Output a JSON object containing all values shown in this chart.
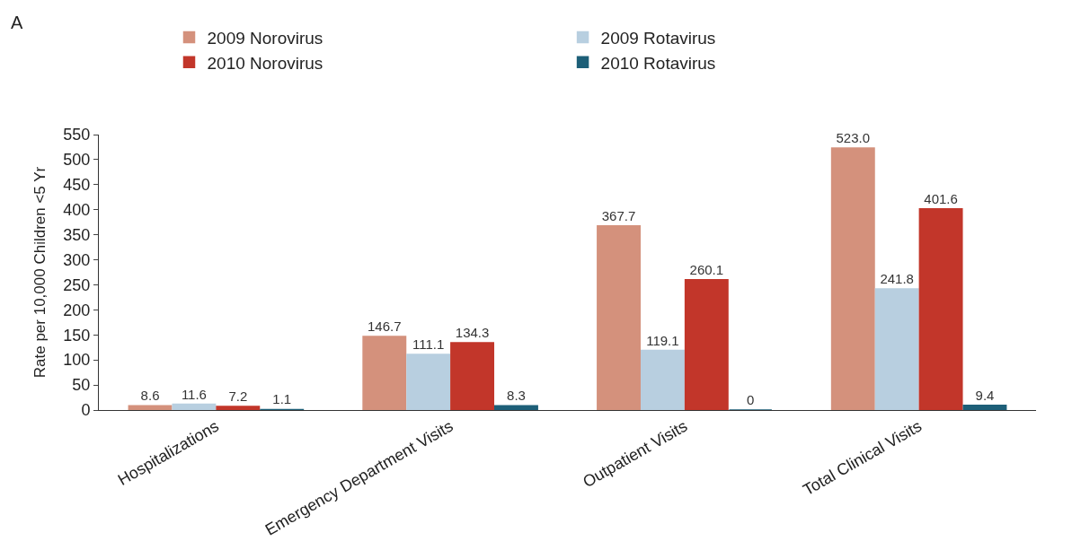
{
  "chart_data": {
    "type": "bar",
    "title": "A",
    "ylabel": "Rate per 10,000 Children <5 Yr",
    "categories": [
      "Hospitalizations",
      "Emergency Department Visits",
      "Outpatient Visits",
      "Total Clinical Visits"
    ],
    "series": [
      {
        "name": "2009 Norovirus",
        "color": "#d4917c",
        "values": [
          8.6,
          146.7,
          367.7,
          523.0
        ],
        "value_labels": [
          "8.6",
          "146.7",
          "367.7",
          "523.0"
        ]
      },
      {
        "name": "2009 Rotavirus",
        "color": "#b8cfe0",
        "values": [
          11.6,
          111.1,
          119.1,
          241.8
        ],
        "value_labels": [
          "11.6",
          "111.1",
          "119.1",
          "241.8"
        ]
      },
      {
        "name": "2010 Norovirus",
        "color": "#c2362a",
        "values": [
          7.2,
          134.3,
          260.1,
          401.6
        ],
        "value_labels": [
          "7.2",
          "134.3",
          "260.1",
          "401.6"
        ]
      },
      {
        "name": "2010 Rotavirus",
        "color": "#1d5f78",
        "values": [
          1.1,
          8.3,
          0,
          9.4
        ],
        "value_labels": [
          "1.1",
          "8.3",
          "0",
          "9.4"
        ]
      }
    ],
    "ylim": [
      0,
      550
    ],
    "yticks": [
      0,
      50,
      100,
      150,
      200,
      250,
      300,
      350,
      400,
      450,
      500,
      550
    ],
    "legend": "top"
  }
}
